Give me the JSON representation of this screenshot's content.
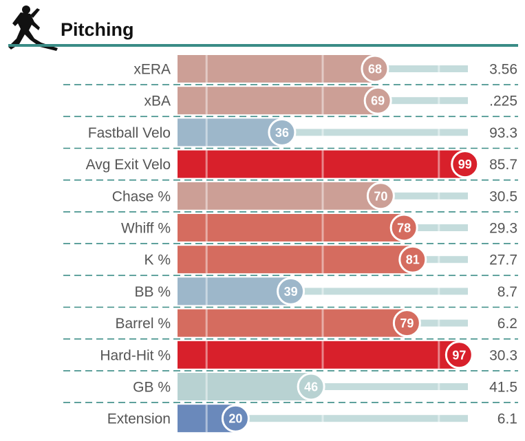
{
  "header": {
    "title": "Pitching",
    "icon": "pitcher-icon",
    "accent_color": "#3a8c86"
  },
  "colors": {
    "track": "#c4dcdc",
    "divider": "#3a8c86",
    "scale": [
      {
        "max": 25,
        "color": "#6a89bb"
      },
      {
        "max": 45,
        "color": "#9db7ca"
      },
      {
        "max": 55,
        "color": "#b8d2d2"
      },
      {
        "max": 72,
        "color": "#cc9f96"
      },
      {
        "max": 90,
        "color": "#d56c5f"
      },
      {
        "max": 100,
        "color": "#d8202b"
      }
    ]
  },
  "chart_data": {
    "type": "bar",
    "title": "Pitching",
    "xlim": [
      0,
      100
    ],
    "categories": [
      "xERA",
      "xBA",
      "Fastball Velo",
      "Avg Exit Velo",
      "Chase %",
      "Whiff %",
      "K %",
      "BB %",
      "Barrel %",
      "Hard-Hit %",
      "GB %",
      "Extension"
    ],
    "values": [
      68,
      69,
      36,
      99,
      70,
      78,
      81,
      39,
      79,
      97,
      46,
      20
    ],
    "stat_values": [
      "3.56",
      ".225",
      "93.3",
      "85.7",
      "30.5",
      "29.3",
      "27.7",
      "8.7",
      "6.2",
      "30.3",
      "41.5",
      "6.1"
    ]
  }
}
